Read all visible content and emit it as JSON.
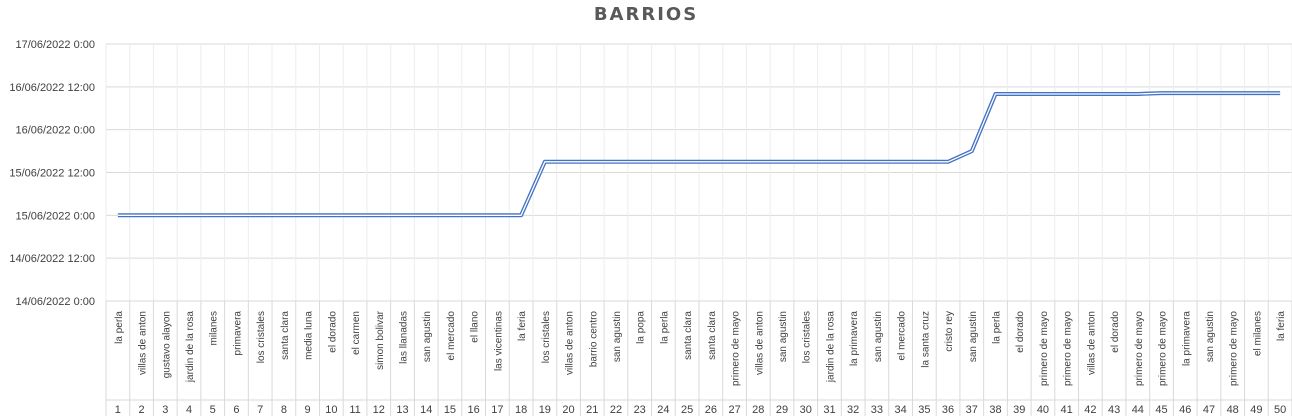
{
  "chart_data": {
    "type": "line",
    "title": "BARRIOS",
    "xlabel": "",
    "ylabel": "",
    "grid": true,
    "legend": "none",
    "y_tick_labels": [
      "17/06/2022 0:00",
      "16/06/2022 12:00",
      "16/06/2022 0:00",
      "15/06/2022 12:00",
      "15/06/2022 0:00",
      "14/06/2022 12:00",
      "14/06/2022 0:00"
    ],
    "ylim": [
      "14/06/2022 0:00",
      "17/06/2022 0:00"
    ],
    "x": [
      1,
      2,
      3,
      4,
      5,
      6,
      7,
      8,
      9,
      10,
      11,
      12,
      13,
      14,
      15,
      16,
      17,
      18,
      19,
      20,
      21,
      22,
      23,
      24,
      25,
      26,
      27,
      28,
      29,
      30,
      31,
      32,
      33,
      34,
      35,
      36,
      37,
      38,
      39,
      40,
      41,
      42,
      43,
      44,
      45,
      46,
      47,
      48,
      49,
      50
    ],
    "categories": [
      "la perla",
      "villas de anton",
      "gustavo alayon",
      "jardin de la rosa",
      "milanes",
      "primavera",
      "los cristales",
      "santa clara",
      "media luna",
      "el dorado",
      "el carmen",
      "simon bolivar",
      "las llanadas",
      "san agustin",
      "el mercado",
      "el llano",
      "las vicentinas",
      "la feria",
      "los cristales",
      "villas de anton",
      "barrio centro",
      "san agustin",
      "la popa",
      "la perla",
      "santa clara",
      "santa clara",
      "primero de mayo",
      "villas de anton",
      "san agustin",
      "los cristales",
      "jardin de la rosa",
      "la primavera",
      "san agustin",
      "el mercado",
      "la santa cruz",
      "cristo rey",
      "san agustin",
      "la perla",
      "el dorado",
      "primero de mayo",
      "primero de mayo",
      "villas de anton",
      "el dorado",
      "primero de mayo",
      "primero de mayo",
      "la primavera",
      "san agustin",
      "primero de mayo",
      "el milanes",
      "la feria"
    ],
    "series": [
      {
        "color": "#4472c4",
        "values": [
          "15/06/2022 0:00",
          "15/06/2022 0:00",
          "15/06/2022 0:00",
          "15/06/2022 0:00",
          "15/06/2022 0:00",
          "15/06/2022 0:00",
          "15/06/2022 0:00",
          "15/06/2022 0:00",
          "15/06/2022 0:00",
          "15/06/2022 0:00",
          "15/06/2022 0:00",
          "15/06/2022 0:00",
          "15/06/2022 0:00",
          "15/06/2022 0:00",
          "15/06/2022 0:00",
          "15/06/2022 0:00",
          "15/06/2022 0:00",
          "15/06/2022 0:00",
          "15/06/2022 15:00",
          "15/06/2022 15:00",
          "15/06/2022 15:00",
          "15/06/2022 15:00",
          "15/06/2022 15:00",
          "15/06/2022 15:00",
          "15/06/2022 15:00",
          "15/06/2022 15:00",
          "15/06/2022 15:00",
          "15/06/2022 15:00",
          "15/06/2022 15:00",
          "15/06/2022 15:00",
          "15/06/2022 15:00",
          "15/06/2022 15:00",
          "15/06/2022 15:00",
          "15/06/2022 15:00",
          "15/06/2022 15:00",
          "15/06/2022 15:00",
          "15/06/2022 18:00",
          "16/06/2022 10:00",
          "16/06/2022 10:00",
          "16/06/2022 10:00",
          "16/06/2022 10:00",
          "16/06/2022 10:00",
          "16/06/2022 10:00",
          "16/06/2022 10:00",
          "16/06/2022 10:15",
          "16/06/2022 10:15",
          "16/06/2022 10:15",
          "16/06/2022 10:15",
          "16/06/2022 10:15",
          "16/06/2022 10:15"
        ]
      }
    ]
  }
}
